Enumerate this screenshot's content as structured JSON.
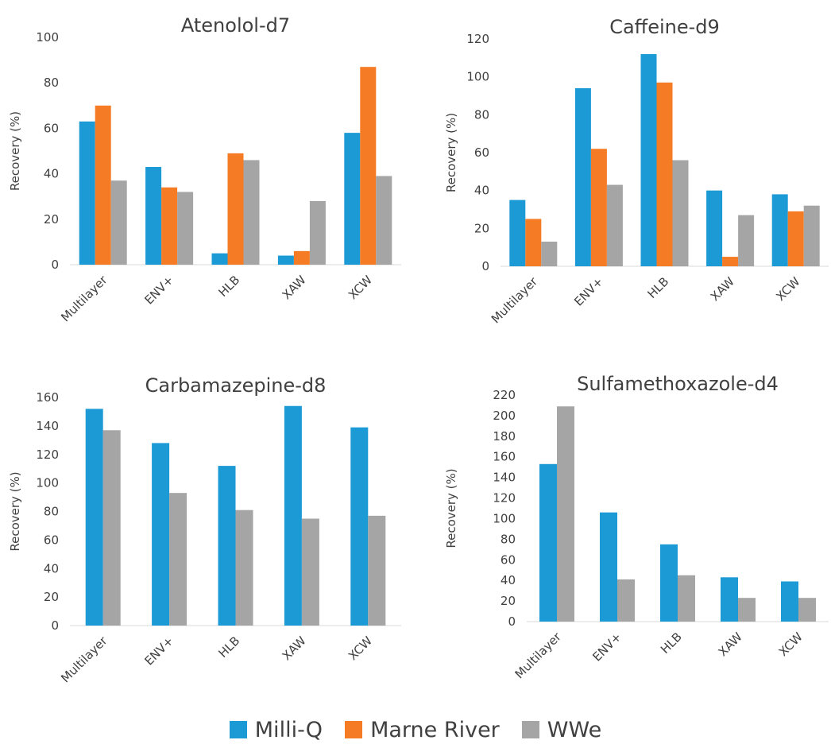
{
  "colors": {
    "milli_q": "#1c9ad6",
    "marne_river": "#f57b24",
    "wwe": "#a5a5a5"
  },
  "legend": [
    {
      "label": "Milli-Q",
      "color": "#1c9ad6"
    },
    {
      "label": "Marne River",
      "color": "#f57b24"
    },
    {
      "label": "WWe",
      "color": "#a5a5a5"
    }
  ],
  "chart_data": [
    {
      "type": "bar",
      "title": "Atenolol-d7",
      "ylabel": "Recovery (%)",
      "xlabel": "",
      "categories": [
        "Multilayer",
        "ENV+",
        "HLB",
        "XAW",
        "XCW"
      ],
      "ylim": [
        0,
        100
      ],
      "yticks": [
        0,
        20,
        40,
        60,
        80,
        100
      ],
      "series": [
        {
          "name": "Milli-Q",
          "color": "#1c9ad6",
          "values": [
            63,
            43,
            5,
            4,
            58
          ]
        },
        {
          "name": "Marne River",
          "color": "#f57b24",
          "values": [
            70,
            34,
            49,
            6,
            87
          ]
        },
        {
          "name": "WWe",
          "color": "#a5a5a5",
          "values": [
            37,
            32,
            46,
            28,
            39
          ]
        }
      ]
    },
    {
      "type": "bar",
      "title": "Caffeine-d9",
      "ylabel": "Recovery (%)",
      "xlabel": "",
      "categories": [
        "Multilayer",
        "ENV+",
        "HLB",
        "XAW",
        "XCW"
      ],
      "ylim": [
        0,
        120
      ],
      "yticks": [
        0,
        20,
        40,
        60,
        80,
        100,
        120
      ],
      "series": [
        {
          "name": "Milli-Q",
          "color": "#1c9ad6",
          "values": [
            35,
            94,
            112,
            40,
            38
          ]
        },
        {
          "name": "Marne River",
          "color": "#f57b24",
          "values": [
            25,
            62,
            97,
            5,
            29
          ]
        },
        {
          "name": "WWe",
          "color": "#a5a5a5",
          "values": [
            13,
            43,
            56,
            27,
            32
          ]
        }
      ]
    },
    {
      "type": "bar",
      "title": "Carbamazepine-d8",
      "ylabel": "Recovery (%)",
      "xlabel": "",
      "categories": [
        "Multilayer",
        "ENV+",
        "HLB",
        "XAW",
        "XCW"
      ],
      "ylim": [
        0,
        160
      ],
      "yticks": [
        0,
        20,
        40,
        60,
        80,
        100,
        120,
        140,
        160
      ],
      "series": [
        {
          "name": "Milli-Q",
          "color": "#1c9ad6",
          "values": [
            152,
            128,
            112,
            154,
            139
          ]
        },
        {
          "name": "WWe",
          "color": "#a5a5a5",
          "values": [
            137,
            93,
            81,
            75,
            77
          ]
        }
      ]
    },
    {
      "type": "bar",
      "title": "Sulfamethoxazole-d4",
      "ylabel": "Recovery (%)",
      "xlabel": "",
      "categories": [
        "Multilayer",
        "ENV+",
        "HLB",
        "XAW",
        "XCW"
      ],
      "ylim": [
        0,
        220
      ],
      "yticks": [
        0,
        20,
        40,
        60,
        80,
        100,
        120,
        140,
        160,
        180,
        200,
        220
      ],
      "series": [
        {
          "name": "Milli-Q",
          "color": "#1c9ad6",
          "values": [
            153,
            106,
            75,
            43,
            39
          ]
        },
        {
          "name": "WWe",
          "color": "#a5a5a5",
          "values": [
            209,
            41,
            45,
            23,
            23
          ]
        }
      ]
    }
  ]
}
